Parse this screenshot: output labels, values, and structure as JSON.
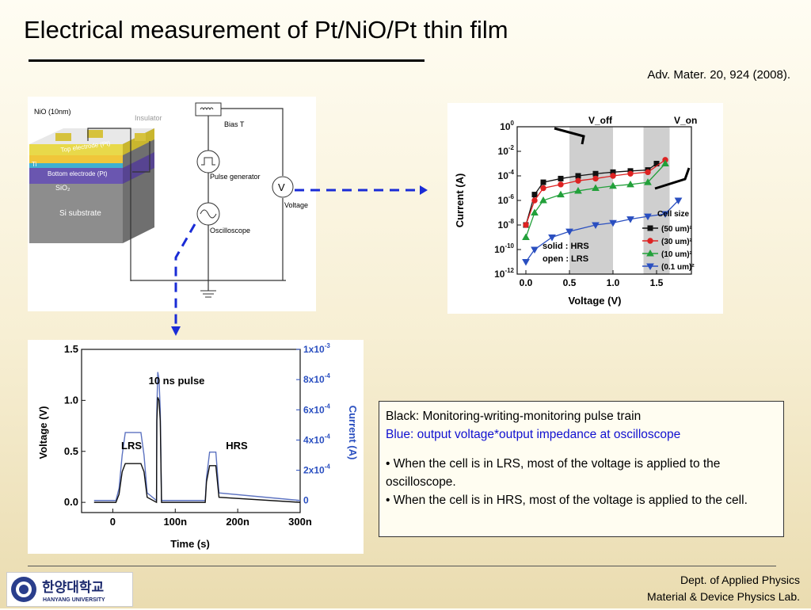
{
  "slide": {
    "title": "Electrical measurement of Pt/NiO/Pt thin film",
    "citation": "Adv. Mater. 20, 924 (2008)."
  },
  "schematic": {
    "labels": {
      "nio": "NiO (10nm)",
      "insulator": "Insulator",
      "top_electrode": "Top electrode (Pt)",
      "ti": "Ti",
      "bottom_electrode": "Bottom electrode (Pt)",
      "sio2": "SiO₂",
      "substrate": "Si substrate",
      "bias_t": "Bias T",
      "pulse_generator": "Pulse generator",
      "oscilloscope": "Oscilloscope",
      "voltage": "Voltage",
      "voltmeter_symbol": "V"
    }
  },
  "chart_data": [
    {
      "type": "line",
      "xlabel": "Voltage (V)",
      "ylabel": "Current (A)",
      "yscale": "log",
      "xlim": [
        -0.1,
        1.9
      ],
      "ylim": [
        1e-12,
        1
      ],
      "xticks": [
        "0.0",
        "0.5",
        "1.0",
        "1.5"
      ],
      "yticks": [
        "10^0",
        "10^-2",
        "10^-4",
        "10^-6",
        "10^-8",
        "10^-10",
        "10^-12"
      ],
      "annotations": [
        "V_off",
        "V_on",
        "solid : HRS",
        "open : LRS"
      ],
      "legend_title": "Cell size",
      "legend_position": "bottom-right",
      "shaded_regions": [
        [
          0.5,
          1.0
        ],
        [
          1.35,
          1.65
        ]
      ],
      "series": [
        {
          "name": "(50 um)²",
          "color": "#111111",
          "marker": "square",
          "x": [
            0.0,
            0.1,
            0.2,
            0.4,
            0.6,
            0.8,
            1.0,
            1.2,
            1.4,
            1.5
          ],
          "y": [
            1e-08,
            3e-06,
            3e-05,
            6e-05,
            0.0001,
            0.00015,
            0.0002,
            0.00025,
            0.0003,
            0.001
          ]
        },
        {
          "name": "(30 um)²",
          "color": "#dd2222",
          "marker": "circle",
          "x": [
            0.0,
            0.1,
            0.2,
            0.4,
            0.6,
            0.8,
            1.0,
            1.2,
            1.4,
            1.6
          ],
          "y": [
            1e-08,
            1e-06,
            1e-05,
            2e-05,
            4e-05,
            6e-05,
            0.0001,
            0.00015,
            0.0002,
            0.002
          ]
        },
        {
          "name": "(10 um)²",
          "color": "#22a03a",
          "marker": "triangle-up",
          "x": [
            0.0,
            0.1,
            0.2,
            0.4,
            0.6,
            0.8,
            1.0,
            1.2,
            1.4,
            1.6
          ],
          "y": [
            1e-09,
            1e-07,
            1e-06,
            3e-06,
            6e-06,
            1e-05,
            1.5e-05,
            2e-05,
            3e-05,
            0.001
          ]
        },
        {
          "name": "(0.1 um)²",
          "color": "#2a4fc0",
          "marker": "triangle-down",
          "x": [
            0.0,
            0.1,
            0.3,
            0.5,
            0.8,
            1.0,
            1.2,
            1.4,
            1.6,
            1.75
          ],
          "y": [
            1e-11,
            1e-10,
            1e-09,
            3e-09,
            1e-08,
            1.5e-08,
            3e-08,
            5e-08,
            8e-08,
            1e-06
          ]
        }
      ]
    },
    {
      "type": "line",
      "title": "10 ns pulse",
      "xlabel": "Time (s)",
      "ylabel": "Voltage (V)",
      "y2label": "Current (A)",
      "xlim": [
        -50,
        300
      ],
      "ylim": [
        -0.1,
        1.5
      ],
      "y2lim": [
        -8e-05,
        0.001
      ],
      "xticks": [
        "0",
        "100n",
        "200n",
        "300n"
      ],
      "yticks": [
        "0.0",
        "0.5",
        "1.0",
        "1.5"
      ],
      "y2ticks": [
        "0",
        "2x10^-4",
        "4x10^-4",
        "6x10^-4",
        "8x10^-4",
        "1x10^-3"
      ],
      "annotations": [
        "LRS",
        "HRS"
      ],
      "series": [
        {
          "name": "Voltage",
          "color": "#111111",
          "x": [
            -30,
            5,
            10,
            15,
            20,
            45,
            50,
            55,
            70,
            70.5,
            72,
            74,
            76,
            78,
            148,
            150,
            155,
            165,
            170,
            300
          ],
          "y": [
            0.0,
            0.0,
            0.08,
            0.3,
            0.38,
            0.38,
            0.3,
            0.05,
            0.0,
            0.8,
            1.03,
            1.0,
            0.8,
            0.0,
            0.0,
            0.2,
            0.36,
            0.36,
            0.05,
            0.0
          ]
        },
        {
          "name": "Current",
          "color": "#5c72c0",
          "x": [
            -30,
            5,
            10,
            15,
            20,
            45,
            50,
            55,
            70,
            70.5,
            72,
            74,
            76,
            78,
            148,
            150,
            155,
            165,
            170,
            300
          ],
          "y": [
            0.0,
            0.0,
            8e-05,
            0.0003,
            0.00045,
            0.00045,
            0.0003,
            5e-05,
            0.0,
            0.0006,
            0.00085,
            0.0008,
            0.0006,
            0.0,
            0.0,
            0.00015,
            0.00032,
            0.00032,
            5e-05,
            0.0
          ]
        }
      ]
    }
  ],
  "notes": {
    "line1": "Black: Monitoring-writing-monitoring pulse train",
    "line2": "Blue: output voltage*output impedance at oscilloscope",
    "bullet1": "• When the cell is in LRS, most of the voltage is applied to the oscilloscope.",
    "bullet2": "• When the cell is in HRS, most of the voltage is applied to the cell."
  },
  "footer": {
    "logo_text_ko": "한양대학교",
    "logo_text_en": "HANYANG UNIVERSITY",
    "dept_line1": "Dept. of Applied Physics",
    "dept_line2": "Material & Device Physics Lab."
  },
  "colors": {
    "arrow_blue": "#1a2cd6",
    "text_blue": "#1010d0"
  }
}
